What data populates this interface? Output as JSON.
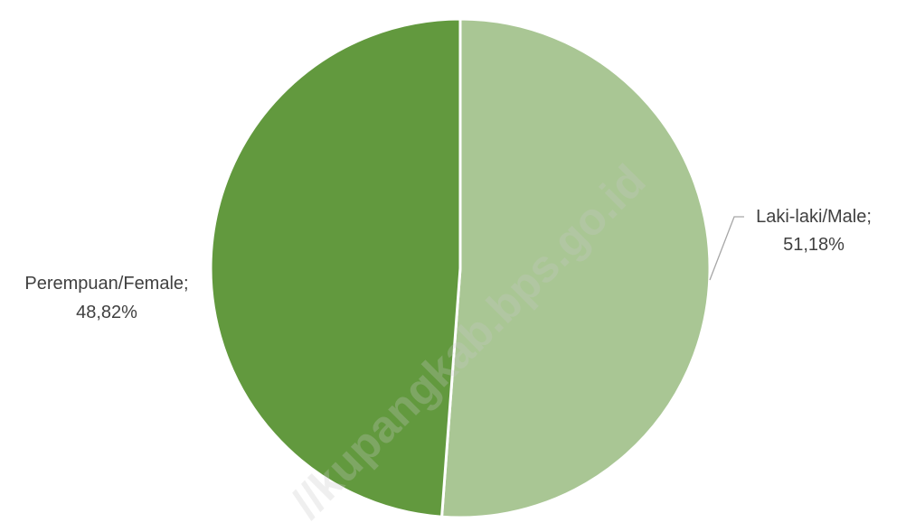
{
  "chart_data": {
    "type": "pie",
    "slices": [
      {
        "label": "Laki-laki/Male",
        "value_text": "51,18%",
        "value": 51.18,
        "color": "#a9c694"
      },
      {
        "label": "Perempuan/Female",
        "value_text": "48,82%",
        "value": 48.82,
        "color": "#62993e"
      }
    ],
    "label_sep": ";",
    "start_angle_deg": 0,
    "direction": "clockwise",
    "slice_border_color": "#ffffff"
  },
  "watermark": {
    "text": "//kupangkab.bps.go.id"
  }
}
